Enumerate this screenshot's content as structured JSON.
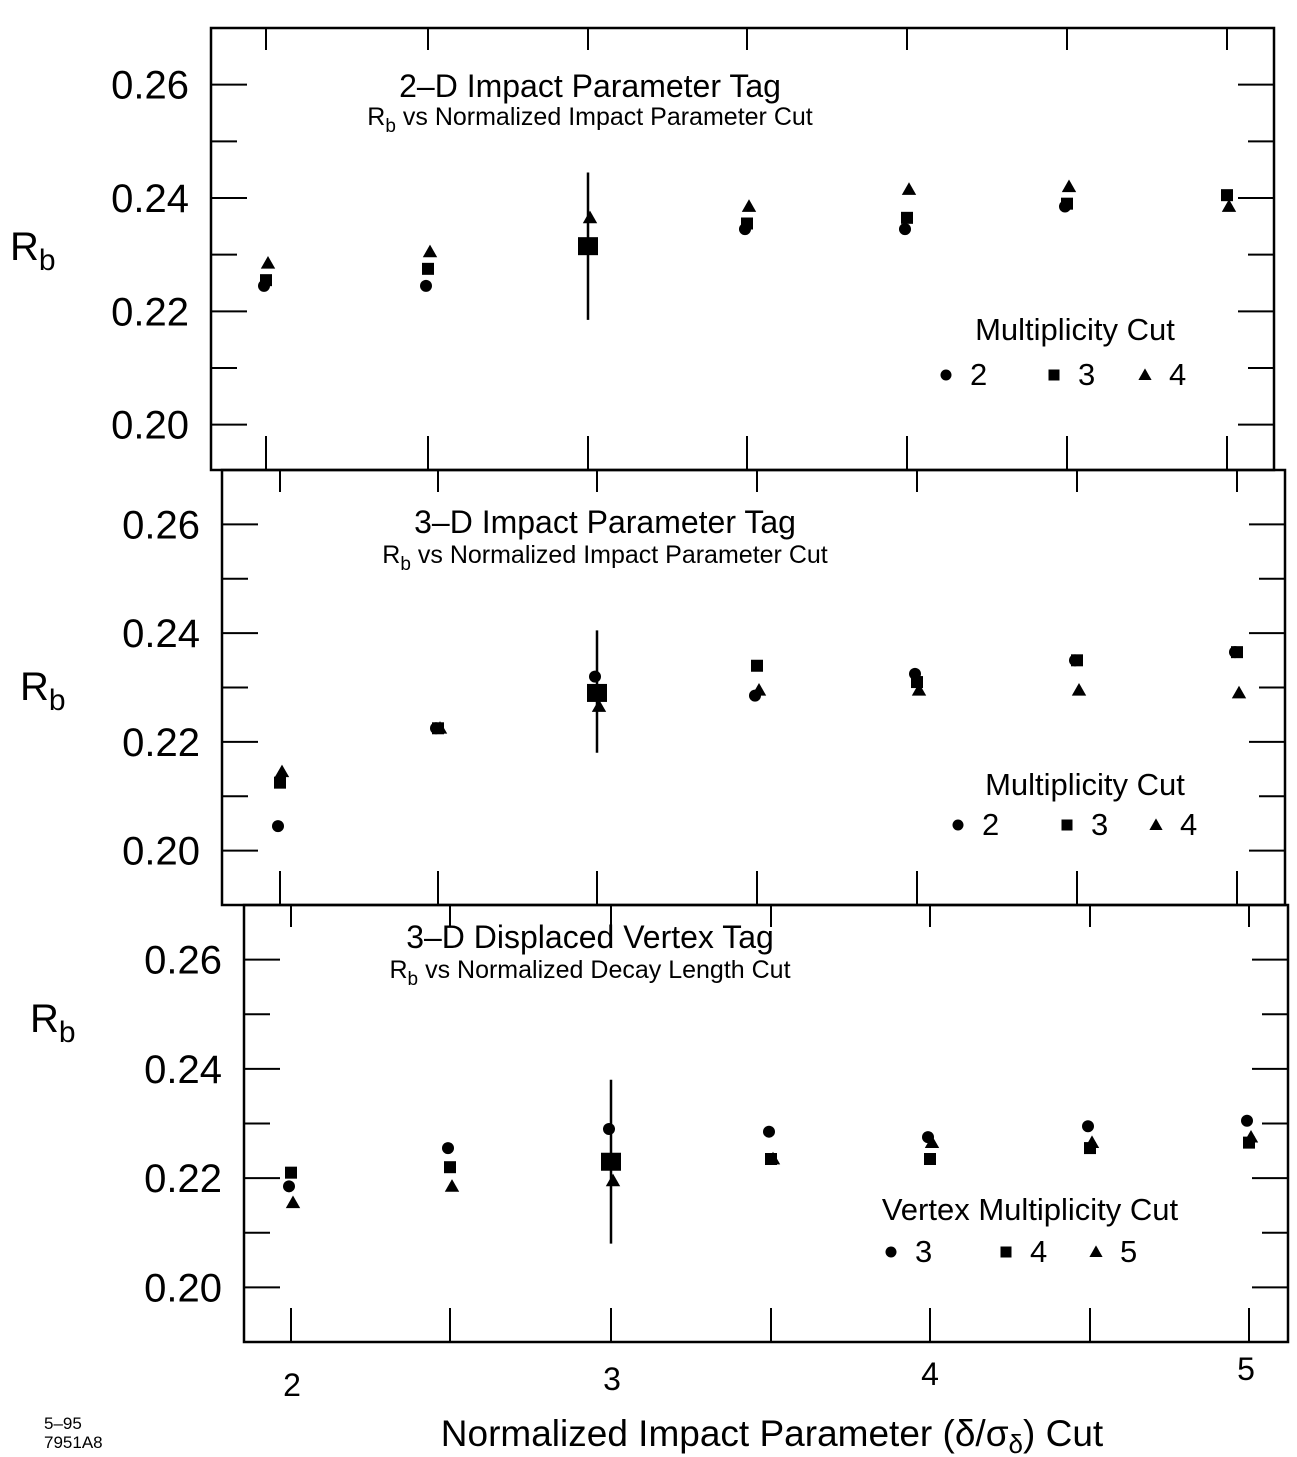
{
  "figure": {
    "xlabel_prefix": "Normalized Impact Parameter (",
    "xlabel_symbol": "δ/σ",
    "xlabel_subscript": "δ",
    "xlabel_suffix": ") Cut",
    "x_ticks": [
      "2",
      "3",
      "4",
      "5"
    ],
    "note_date": "5–95",
    "note_id": "7951A8"
  },
  "chart_data": [
    {
      "type": "scatter",
      "title": "2–D Impact Parameter Tag",
      "subtitle_main": "R",
      "subtitle_sub": "b",
      "subtitle_rest": " vs Normalized Impact Parameter Cut",
      "ylabel_main": "R",
      "ylabel_sub": "b",
      "xlim": [
        1.9,
        5.1
      ],
      "ylim": [
        0.192,
        0.27
      ],
      "y_ticks": [
        "0.20",
        "0.22",
        "0.24",
        "0.26"
      ],
      "legend_title": "Multiplicity Cut",
      "legend_labels": [
        "2",
        "3",
        "4"
      ],
      "series": [
        {
          "name": "2",
          "marker": "circle",
          "x": [
            2.0,
            2.5,
            3.0,
            3.5,
            4.0,
            4.5
          ],
          "y": [
            0.2245,
            0.2245,
            0.2315,
            0.2345,
            0.2345,
            0.2385
          ]
        },
        {
          "name": "3",
          "marker": "square",
          "x": [
            2.0,
            2.5,
            3.0,
            3.5,
            4.0,
            4.5,
            5.0
          ],
          "y": [
            0.2255,
            0.2275,
            0.2315,
            0.2355,
            0.2365,
            0.239,
            0.2405
          ]
        },
        {
          "name": "4",
          "marker": "triangle",
          "x": [
            2.0,
            2.5,
            3.0,
            3.5,
            4.0,
            4.5,
            5.0
          ],
          "y": [
            0.2285,
            0.2305,
            0.2365,
            0.2385,
            0.2415,
            0.242,
            0.2385
          ]
        }
      ],
      "error_bar": {
        "x": 3.0,
        "y": 0.2315,
        "low": 0.2185,
        "high": 0.2445
      }
    },
    {
      "type": "scatter",
      "title": "3–D Impact Parameter Tag",
      "subtitle_main": "R",
      "subtitle_sub": "b",
      "subtitle_rest": " vs Normalized Impact Parameter Cut",
      "ylabel_main": "R",
      "ylabel_sub": "b",
      "xlim": [
        1.9,
        5.1
      ],
      "ylim": [
        0.19,
        0.27
      ],
      "y_ticks": [
        "0.20",
        "0.22",
        "0.24",
        "0.26"
      ],
      "legend_title": "Multiplicity Cut",
      "legend_labels": [
        "2",
        "3",
        "4"
      ],
      "series": [
        {
          "name": "2",
          "marker": "circle",
          "x": [
            2.0,
            2.5,
            3.0,
            3.5,
            4.0,
            4.5,
            5.0
          ],
          "y": [
            0.2045,
            0.2225,
            0.232,
            0.2285,
            0.2325,
            0.235,
            0.2365
          ]
        },
        {
          "name": "3",
          "marker": "square",
          "x": [
            2.0,
            2.5,
            3.0,
            3.5,
            4.0,
            4.5,
            5.0
          ],
          "y": [
            0.2125,
            0.2225,
            0.229,
            0.234,
            0.231,
            0.235,
            0.2365
          ]
        },
        {
          "name": "4",
          "marker": "triangle",
          "x": [
            2.0,
            2.5,
            3.0,
            3.5,
            4.0,
            4.5,
            5.0
          ],
          "y": [
            0.2145,
            0.2225,
            0.2265,
            0.2295,
            0.2295,
            0.2295,
            0.229
          ]
        }
      ],
      "error_bar": {
        "x": 3.0,
        "y": 0.229,
        "low": 0.218,
        "high": 0.2405
      }
    },
    {
      "type": "scatter",
      "title": "3–D Displaced Vertex Tag",
      "subtitle_main": "R",
      "subtitle_sub": "b",
      "subtitle_rest": " vs Normalized Decay Length Cut",
      "ylabel_main": "R",
      "ylabel_sub": "b",
      "xlim": [
        1.9,
        5.1
      ],
      "ylim": [
        0.19,
        0.27
      ],
      "y_ticks": [
        "0.20",
        "0.22",
        "0.24",
        "0.26"
      ],
      "legend_title": "Vertex Multiplicity Cut",
      "legend_labels": [
        "3",
        "4",
        "5"
      ],
      "series": [
        {
          "name": "3",
          "marker": "circle",
          "x": [
            2.0,
            2.5,
            3.0,
            3.5,
            4.0,
            4.5,
            5.0
          ],
          "y": [
            0.2185,
            0.2255,
            0.229,
            0.2285,
            0.2275,
            0.2295,
            0.2305
          ]
        },
        {
          "name": "4",
          "marker": "square",
          "x": [
            2.0,
            2.5,
            3.0,
            3.5,
            4.0,
            4.5,
            5.0
          ],
          "y": [
            0.221,
            0.222,
            0.223,
            0.2235,
            0.2235,
            0.2255,
            0.2265
          ]
        },
        {
          "name": "5",
          "marker": "triangle",
          "x": [
            2.0,
            2.5,
            3.0,
            3.5,
            4.0,
            4.5,
            5.0
          ],
          "y": [
            0.2155,
            0.2185,
            0.2195,
            0.2235,
            0.2265,
            0.2265,
            0.2275
          ]
        }
      ],
      "error_bar": {
        "x": 3.0,
        "y": 0.223,
        "low": 0.208,
        "high": 0.238
      }
    }
  ]
}
